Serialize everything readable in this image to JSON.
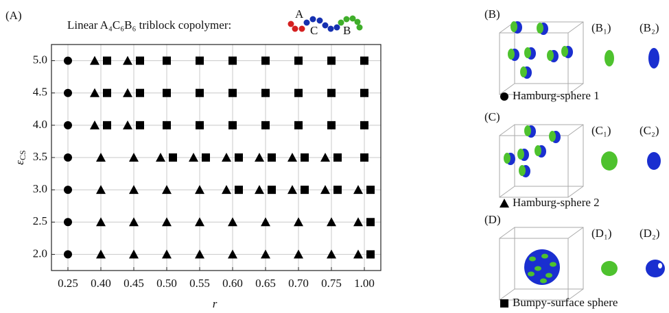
{
  "chart_data": {
    "type": "scatter",
    "panel_label": "(A)",
    "title": "Linear  A₄C₆B₆ triblock copolymer:",
    "chain_labels": [
      "A",
      "C",
      "B"
    ],
    "xlabel": "r",
    "ylabel": "ε",
    "ylabel_sub": "CS",
    "categories": [
      "0.25",
      "0.40",
      "0.45",
      "0.50",
      "0.55",
      "0.60",
      "0.65",
      "0.70",
      "0.75",
      "1.00"
    ],
    "ylim": [
      1.75,
      5.25
    ],
    "yticks": [
      {
        "value": 2,
        "label": "2.0"
      },
      {
        "value": 2.5,
        "label": "2.5"
      },
      {
        "value": 3,
        "label": "3.0"
      },
      {
        "value": 3.5,
        "label": "3.5"
      },
      {
        "value": 4,
        "label": "4.0"
      },
      {
        "value": 4.5,
        "label": "4.5"
      },
      {
        "value": 5,
        "label": "5.0"
      }
    ],
    "grid": true,
    "series": [
      {
        "name": "Hamburg-sphere 1",
        "marker": "circle",
        "color": "#000000",
        "x": [
          "0.25",
          "0.25",
          "0.25",
          "0.25",
          "0.25",
          "0.25",
          "0.25"
        ],
        "values": [
          5,
          4.5,
          4,
          3.5,
          3,
          2.5,
          2
        ]
      },
      {
        "name": "Hamburg-sphere 2",
        "marker": "triangle",
        "color": "#000000",
        "x": [
          "0.40",
          "0.40",
          "0.40",
          "0.40",
          "0.40",
          "0.40",
          "0.40",
          "0.45",
          "0.45",
          "0.45",
          "0.45",
          "0.45",
          "0.45",
          "0.45",
          "0.50",
          "0.50",
          "0.50",
          "0.50",
          "0.55",
          "0.55",
          "0.55",
          "0.55",
          "0.60",
          "0.60",
          "0.60",
          "0.60",
          "0.65",
          "0.65",
          "0.65",
          "0.65",
          "0.70",
          "0.70",
          "0.70",
          "0.70",
          "0.75",
          "0.75",
          "0.75",
          "0.75",
          "1.00",
          "1.00",
          "1.00"
        ],
        "values": [
          5,
          4.5,
          4,
          3.5,
          3,
          2.5,
          2,
          5,
          4.5,
          4,
          3.5,
          3,
          2.5,
          2,
          3.5,
          3,
          2.5,
          2,
          3.5,
          3,
          2.5,
          2,
          3.5,
          3,
          2.5,
          2,
          3.5,
          3,
          2.5,
          2,
          3.5,
          3,
          2.5,
          2,
          3.5,
          3,
          2.5,
          2,
          3,
          2.5,
          2
        ]
      },
      {
        "name": "Bumpy-surface sphere",
        "marker": "square",
        "color": "#000000",
        "x": [
          "0.40",
          "0.40",
          "0.40",
          "0.45",
          "0.45",
          "0.45",
          "0.50",
          "0.50",
          "0.50",
          "0.50",
          "0.55",
          "0.55",
          "0.55",
          "0.55",
          "0.60",
          "0.60",
          "0.60",
          "0.60",
          "0.60",
          "0.65",
          "0.65",
          "0.65",
          "0.65",
          "0.65",
          "0.70",
          "0.70",
          "0.70",
          "0.70",
          "0.70",
          "0.75",
          "0.75",
          "0.75",
          "0.75",
          "0.75",
          "1.00",
          "1.00",
          "1.00",
          "1.00",
          "1.00",
          "1.00",
          "1.00"
        ],
        "values": [
          5,
          4.5,
          4,
          5,
          4.5,
          4,
          5,
          4.5,
          4,
          3.5,
          5,
          4.5,
          4,
          3.5,
          5,
          4.5,
          4,
          3.5,
          3,
          5,
          4.5,
          4,
          3.5,
          3,
          5,
          4.5,
          4,
          3.5,
          3,
          5,
          4.5,
          4,
          3.5,
          3,
          5,
          4.5,
          4,
          3.5,
          3,
          2.5,
          2
        ]
      }
    ],
    "side_panels": [
      {
        "label": "(B)",
        "sub1": "(B₁)",
        "sub2": "(B₂)"
      },
      {
        "label": "(C)",
        "sub1": "(C₁)",
        "sub2": "(C₂)"
      },
      {
        "label": "(D)",
        "sub1": "(D₁)",
        "sub2": "(D₂)"
      }
    ]
  }
}
